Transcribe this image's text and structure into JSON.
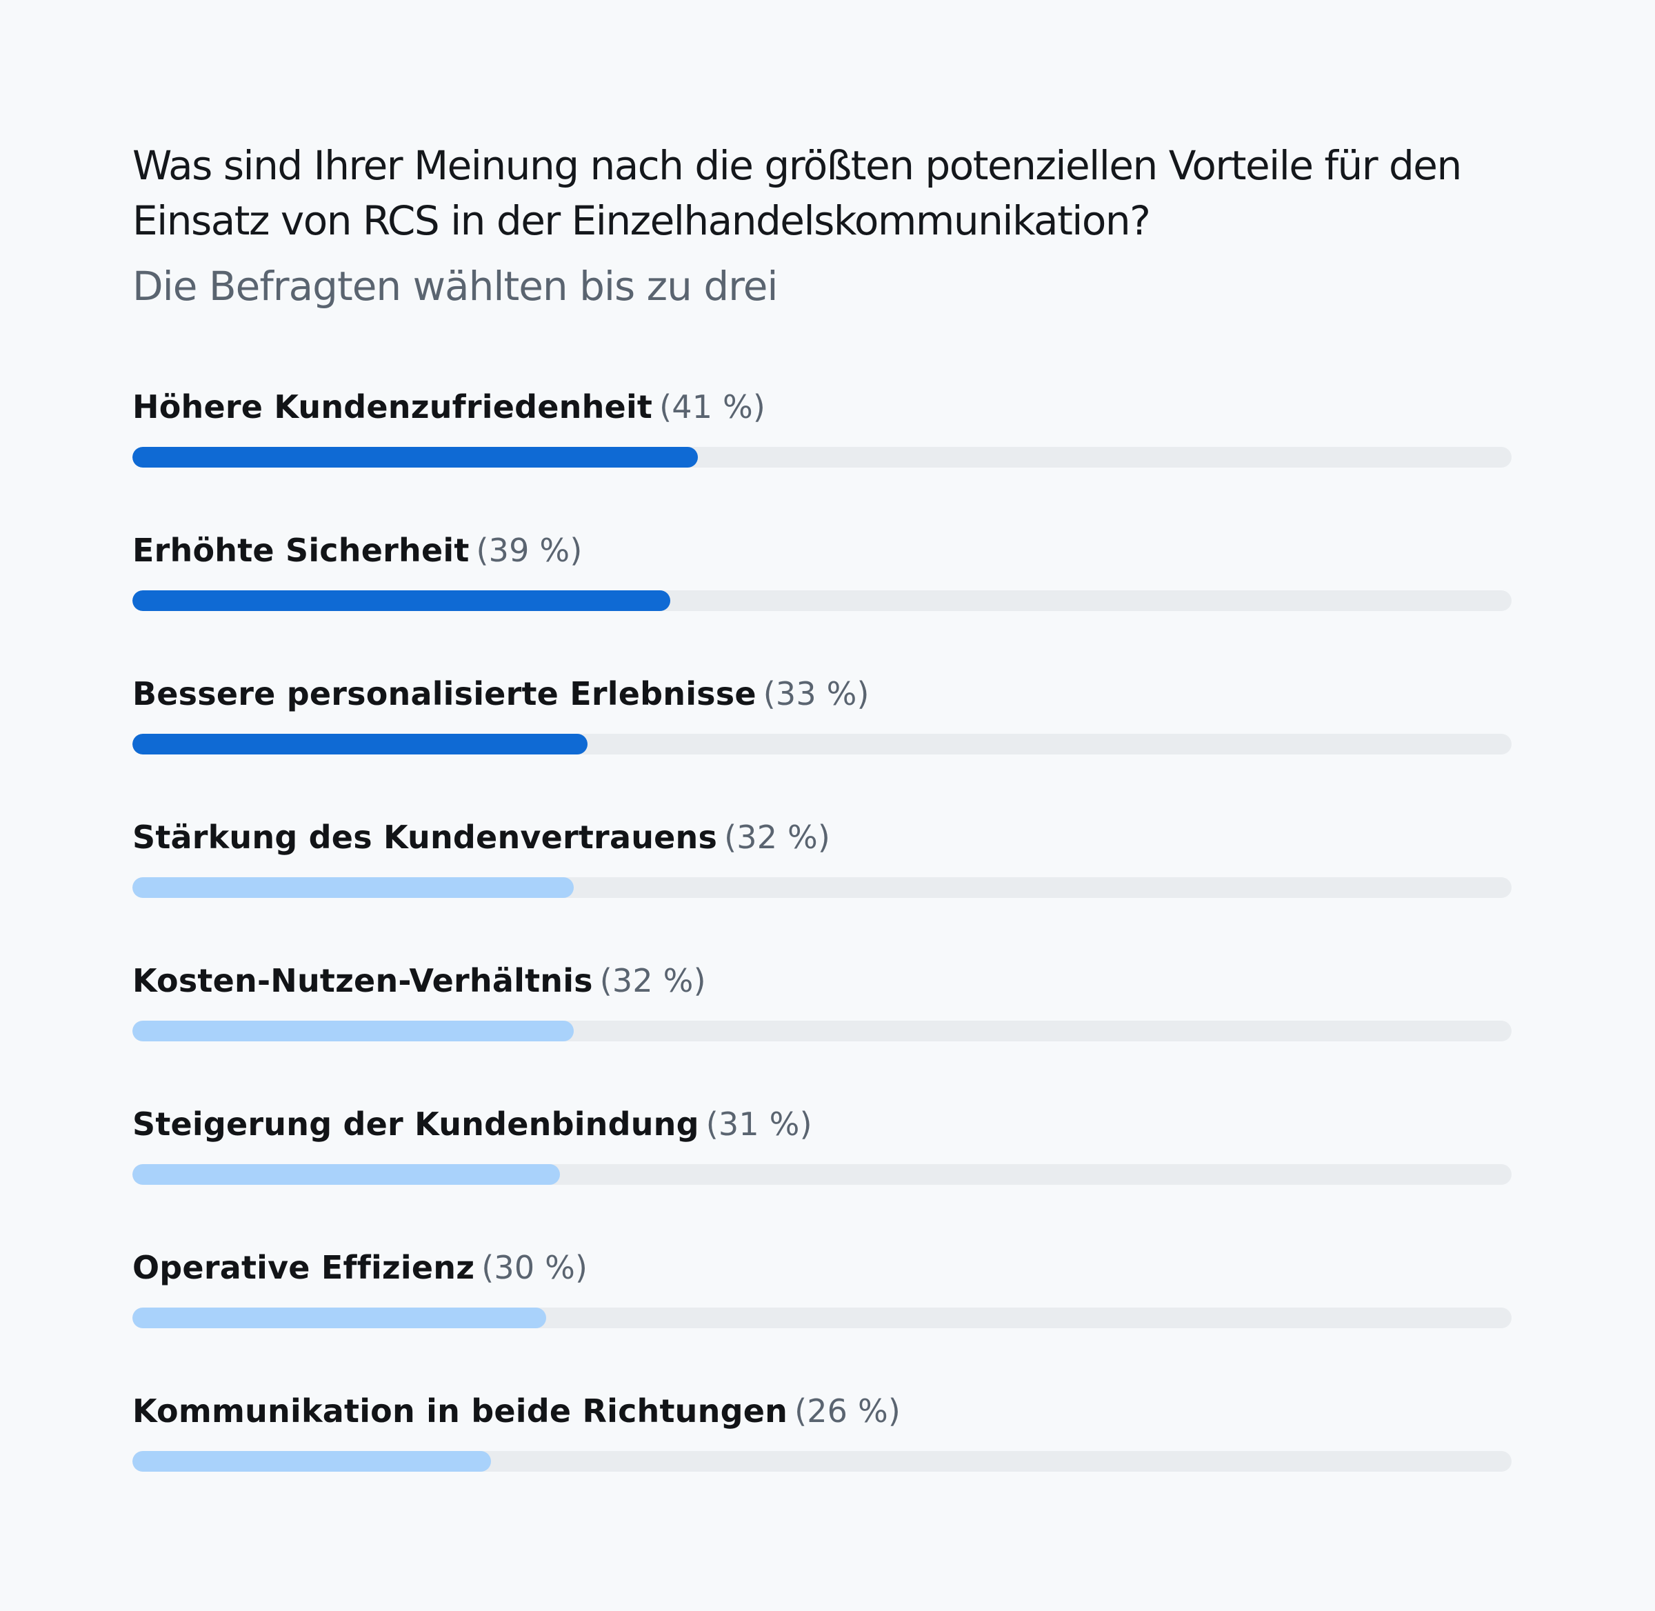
{
  "title": "Was sind Ihrer Meinung nach die größten potenziellen Vorteile für den Einsatz von RCS in der Einzelhandelskommunikation?",
  "subtitle": "Die Befragten wählten bis zu drei",
  "colors": {
    "background": "#f7f9fb",
    "dark_blue": "#0f6ad4",
    "light_blue": "#a9d2fb",
    "track": "#e9ecef"
  },
  "chart_data": {
    "type": "bar",
    "orientation": "horizontal",
    "title": "Was sind Ihrer Meinung nach die größten potenziellen Vorteile für den Einsatz von RCS in der Einzelhandelskommunikation?",
    "subtitle": "Die Befragten wählten bis zu drei",
    "xlim": [
      0,
      100
    ],
    "grid": false,
    "legend": "none",
    "categories": [
      "Höhere Kundenzufriedenheit",
      "Erhöhte Sicherheit",
      "Bessere personalisierte Erlebnisse",
      "Stärkung des Kundenvertrauens",
      "Kosten-Nutzen-Verhältnis",
      "Steigerung der Kundenbindung",
      "Operative Effizienz",
      "Kommunikation in beide Richtungen"
    ],
    "values": [
      41,
      39,
      33,
      32,
      32,
      31,
      30,
      26
    ],
    "labels": [
      "(41 %)",
      "(39 %)",
      "(33 %)",
      "(32 %)",
      "(32 %)",
      "(31 %)",
      "(30 %)",
      "(26 %)"
    ],
    "highlight": [
      true,
      true,
      true,
      false,
      false,
      false,
      false,
      false
    ]
  }
}
